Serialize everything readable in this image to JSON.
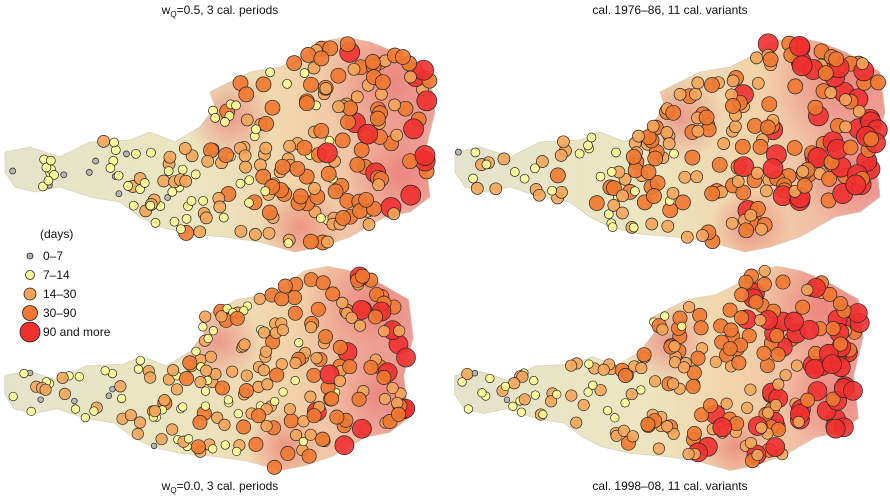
{
  "panels": [
    {
      "title": {
        "main": "w",
        "sub": "Q",
        "rest": "=0.5, 3 cal. periods"
      }
    },
    {
      "title": {
        "main": "cal. 1976–86, 11 cal. variants"
      }
    },
    {
      "title": {
        "main": "w",
        "sub": "Q",
        "rest": "=0.0, 3 cal. periods"
      }
    },
    {
      "title": {
        "main": "cal. 1998–08, 11 cal. variants"
      }
    }
  ],
  "legend": {
    "title": "(days)",
    "items": [
      "0–7",
      "7–14",
      "14–30",
      "30–90",
      "90 and more"
    ]
  }
}
